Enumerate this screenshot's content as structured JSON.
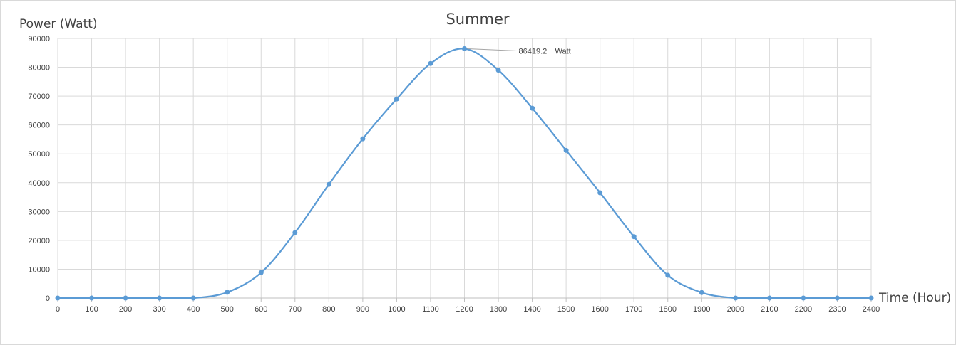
{
  "chart_data": {
    "type": "line",
    "title": "Summer",
    "xlabel": "Time (Hour)",
    "ylabel": "Power (Watt)",
    "x": [
      0,
      100,
      200,
      300,
      400,
      500,
      600,
      700,
      800,
      900,
      1000,
      1100,
      1200,
      1300,
      1400,
      1500,
      1600,
      1700,
      1800,
      1900,
      2000,
      2100,
      2200,
      2300,
      2400
    ],
    "series": [
      {
        "values": [
          0,
          0,
          0,
          0,
          0,
          2000,
          8800,
          22700,
          39400,
          55200,
          69000,
          81300,
          86419.2,
          79000,
          65800,
          51200,
          36500,
          21300,
          7900,
          1900,
          0,
          0,
          0,
          0,
          0
        ],
        "color": "#5b9bd5"
      }
    ],
    "xlim": [
      0,
      2400
    ],
    "ylim": [
      0,
      90000
    ],
    "x_ticks": [
      "0",
      "100",
      "200",
      "300",
      "400",
      "500",
      "600",
      "700",
      "800",
      "900",
      "1000",
      "1100",
      "1200",
      "1300",
      "1400",
      "1500",
      "1600",
      "1700",
      "1800",
      "1900",
      "2000",
      "2100",
      "2200",
      "2300",
      "2400"
    ],
    "y_ticks": [
      "0",
      "10000",
      "20000",
      "30000",
      "40000",
      "50000",
      "60000",
      "70000",
      "80000",
      "90000"
    ],
    "grid": true,
    "smooth": true,
    "annotations": [
      {
        "x": 1200,
        "y": 86419.2,
        "value": "86419.2",
        "unit": "Watt"
      }
    ]
  }
}
